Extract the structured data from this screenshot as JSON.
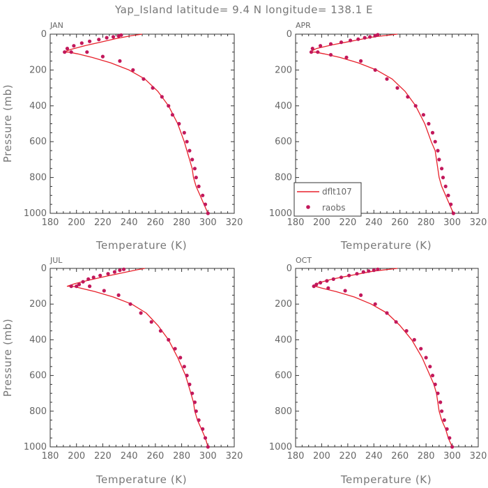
{
  "figure_title": "Yap_Island   latitude=  9.4  N  longitude=  138.1  E",
  "colors": {
    "model": "#e8212b",
    "obs": "#c2185b",
    "axis": "#333333"
  },
  "legend": {
    "model_label": "dflt107",
    "obs_label": "raobs"
  },
  "chart_data": [
    {
      "type": "line",
      "panel_label": "JAN",
      "xlabel": "Temperature (K)",
      "ylabel": "Pressure (mb)",
      "xlim": [
        180,
        320
      ],
      "ylim": [
        1000,
        0
      ],
      "xticks": [
        "180",
        "200",
        "220",
        "240",
        "260",
        "280",
        "300",
        "320"
      ],
      "yticks": [
        "0",
        "200",
        "400",
        "600",
        "800",
        "1000"
      ],
      "series": [
        {
          "name": "dflt107",
          "style": "line",
          "x": [
            300,
            297,
            294,
            291,
            289,
            288,
            286,
            282,
            277,
            270,
            262,
            252,
            240,
            226,
            212,
            201,
            194,
            190,
            196,
            206,
            218,
            230,
            242,
            250
          ],
          "y": [
            1000,
            950,
            900,
            850,
            800,
            750,
            700,
            600,
            500,
            400,
            320,
            250,
            200,
            160,
            130,
            110,
            100,
            100,
            85,
            65,
            45,
            25,
            8,
            0
          ]
        },
        {
          "name": "raobs",
          "style": "markers",
          "x": [
            300,
            298,
            296,
            293,
            291,
            290,
            288,
            286,
            284,
            282,
            278,
            273,
            270,
            265,
            258,
            251,
            243,
            233,
            220,
            208,
            196,
            191,
            193,
            198,
            204,
            210,
            217,
            223,
            228,
            232,
            234
          ],
          "y": [
            1000,
            950,
            900,
            850,
            800,
            750,
            700,
            650,
            600,
            550,
            500,
            450,
            400,
            350,
            300,
            250,
            200,
            150,
            125,
            100,
            100,
            100,
            80,
            65,
            50,
            40,
            30,
            20,
            15,
            10,
            5
          ]
        }
      ]
    },
    {
      "type": "line",
      "panel_label": "APR",
      "xlabel": "Temperature (K)",
      "ylabel": "",
      "xlim": [
        180,
        320
      ],
      "ylim": [
        1000,
        0
      ],
      "xticks": [
        "180",
        "200",
        "220",
        "240",
        "260",
        "280",
        "300",
        "320"
      ],
      "yticks": [
        "0",
        "200",
        "400",
        "600",
        "800",
        "1000"
      ],
      "legend_position": "lower-left",
      "series": [
        {
          "name": "dflt107",
          "style": "line",
          "x": [
            301,
            298,
            295,
            292,
            290,
            289,
            288,
            287,
            284,
            279,
            272,
            264,
            254,
            242,
            228,
            214,
            202,
            195,
            191,
            196,
            208,
            222,
            240,
            258
          ],
          "y": [
            1000,
            950,
            900,
            850,
            800,
            750,
            700,
            650,
            600,
            500,
            400,
            320,
            250,
            200,
            160,
            130,
            110,
            100,
            100,
            80,
            60,
            40,
            15,
            0
          ]
        },
        {
          "name": "raobs",
          "style": "markers",
          "x": [
            301,
            299,
            297,
            295,
            293,
            292,
            290,
            289,
            287,
            285,
            282,
            278,
            272,
            266,
            258,
            250,
            241,
            230,
            219,
            207,
            197,
            192,
            193,
            199,
            207,
            215,
            222,
            228,
            233,
            237,
            241,
            243
          ],
          "y": [
            1000,
            950,
            900,
            850,
            800,
            750,
            700,
            650,
            600,
            550,
            500,
            450,
            400,
            350,
            300,
            250,
            200,
            150,
            130,
            115,
            100,
            100,
            80,
            65,
            55,
            45,
            35,
            28,
            20,
            15,
            8,
            3
          ]
        }
      ]
    },
    {
      "type": "line",
      "panel_label": "JUL",
      "xlabel": "Temperature (K)",
      "ylabel": "Pressure (mb)",
      "xlim": [
        180,
        320
      ],
      "ylim": [
        1000,
        0
      ],
      "xticks": [
        "180",
        "200",
        "220",
        "240",
        "260",
        "280",
        "300",
        "320"
      ],
      "yticks": [
        "0",
        "200",
        "400",
        "600",
        "800",
        "1000"
      ],
      "series": [
        {
          "name": "dflt107",
          "style": "line",
          "x": [
            300,
            298,
            295,
            292,
            290,
            289,
            287,
            283,
            277,
            270,
            262,
            253,
            242,
            228,
            214,
            203,
            197,
            193,
            199,
            210,
            222,
            235,
            246,
            252
          ],
          "y": [
            1000,
            950,
            900,
            850,
            800,
            750,
            700,
            600,
            500,
            400,
            320,
            250,
            200,
            160,
            130,
            110,
            100,
            100,
            85,
            65,
            45,
            25,
            8,
            0
          ]
        },
        {
          "name": "raobs",
          "style": "markers",
          "x": [
            300,
            298,
            296,
            293,
            291,
            290,
            288,
            286,
            284,
            282,
            279,
            275,
            270,
            264,
            257,
            249,
            241,
            232,
            221,
            210,
            200,
            196,
            202,
            205,
            209,
            213,
            218,
            224,
            229,
            233,
            236
          ],
          "y": [
            1000,
            950,
            900,
            850,
            800,
            750,
            700,
            650,
            600,
            550,
            500,
            450,
            400,
            350,
            300,
            250,
            200,
            150,
            125,
            100,
            100,
            100,
            90,
            75,
            60,
            50,
            40,
            30,
            20,
            10,
            5
          ]
        }
      ]
    },
    {
      "type": "line",
      "panel_label": "OCT",
      "xlabel": "Temperature (K)",
      "ylabel": "",
      "xlim": [
        180,
        320
      ],
      "ylim": [
        1000,
        0
      ],
      "xticks": [
        "180",
        "200",
        "220",
        "240",
        "260",
        "280",
        "300",
        "320"
      ],
      "yticks": [
        "0",
        "200",
        "400",
        "600",
        "800",
        "1000"
      ],
      "series": [
        {
          "name": "dflt107",
          "style": "line",
          "x": [
            300,
            297,
            295,
            292,
            290,
            289,
            288,
            286,
            283,
            277,
            269,
            260,
            250,
            238,
            225,
            211,
            200,
            195,
            193,
            198,
            208,
            222,
            240,
            258
          ],
          "y": [
            1000,
            950,
            900,
            850,
            800,
            750,
            700,
            650,
            600,
            500,
            400,
            320,
            250,
            200,
            160,
            130,
            110,
            100,
            100,
            80,
            60,
            40,
            15,
            0
          ]
        },
        {
          "name": "raobs",
          "style": "markers",
          "x": [
            300,
            298,
            296,
            294,
            292,
            291,
            289,
            287,
            285,
            283,
            280,
            276,
            271,
            265,
            257,
            250,
            241,
            230,
            218,
            205,
            194,
            196,
            199,
            204,
            209,
            215,
            221,
            227,
            232,
            236,
            240,
            243
          ],
          "y": [
            1000,
            950,
            900,
            850,
            800,
            750,
            700,
            650,
            600,
            550,
            500,
            450,
            400,
            350,
            300,
            250,
            200,
            150,
            125,
            110,
            100,
            90,
            80,
            70,
            60,
            50,
            40,
            30,
            20,
            15,
            10,
            5
          ]
        }
      ]
    }
  ]
}
